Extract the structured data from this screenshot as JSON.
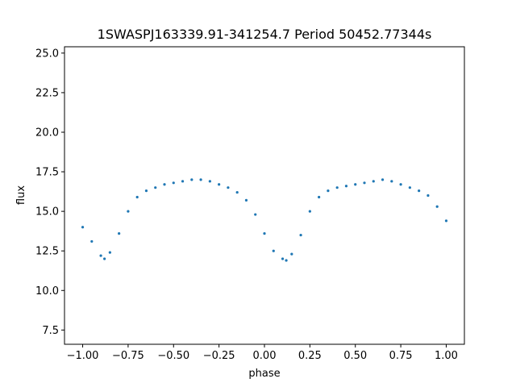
{
  "chart_data": {
    "type": "scatter",
    "title": "1SWASPJ163339.91-341254.7 Period 50452.77344s",
    "xlabel": "phase",
    "ylabel": "flux",
    "xlim": [
      -1.1,
      1.1
    ],
    "ylim": [
      6.6,
      25.4
    ],
    "grid": false,
    "legend": "none",
    "point_color": "#1f77b4",
    "x_ticks": [
      -1.0,
      -0.75,
      -0.5,
      -0.25,
      0.0,
      0.25,
      0.5,
      0.75,
      1.0
    ],
    "x_tick_labels": [
      "−1.00",
      "−0.75",
      "−0.50",
      "−0.25",
      "0.00",
      "0.25",
      "0.50",
      "0.75",
      "1.00"
    ],
    "y_ticks": [
      7.5,
      10.0,
      12.5,
      15.0,
      17.5,
      20.0,
      22.5,
      25.0
    ],
    "y_tick_labels": [
      "7.5",
      "10.0",
      "12.5",
      "15.0",
      "17.5",
      "20.0",
      "22.5",
      "25.0"
    ],
    "series": [
      {
        "x": [
          -1.0,
          -0.95,
          -0.9,
          -0.88,
          -0.85,
          -0.8,
          -0.75,
          -0.7,
          -0.65,
          -0.6,
          -0.55,
          -0.5,
          -0.45,
          -0.4,
          -0.35,
          -0.3,
          -0.25,
          -0.2,
          -0.15,
          -0.1,
          -0.05,
          0.0,
          0.05,
          0.1,
          0.12,
          0.15,
          0.2,
          0.25,
          0.3,
          0.35,
          0.4,
          0.45,
          0.5,
          0.55,
          0.6,
          0.65,
          0.7,
          0.75,
          0.8,
          0.85,
          0.9,
          0.95,
          1.0
        ],
        "y": [
          14.0,
          13.1,
          12.2,
          12.0,
          12.4,
          13.6,
          15.0,
          15.9,
          16.3,
          16.5,
          16.7,
          16.8,
          16.9,
          17.0,
          17.0,
          16.9,
          16.7,
          16.5,
          16.2,
          15.7,
          14.8,
          13.6,
          12.5,
          12.0,
          11.9,
          12.3,
          13.5,
          15.0,
          15.9,
          16.3,
          16.5,
          16.6,
          16.7,
          16.8,
          16.9,
          17.0,
          16.9,
          16.7,
          16.5,
          16.3,
          16.0,
          15.3,
          14.4
        ]
      }
    ]
  }
}
